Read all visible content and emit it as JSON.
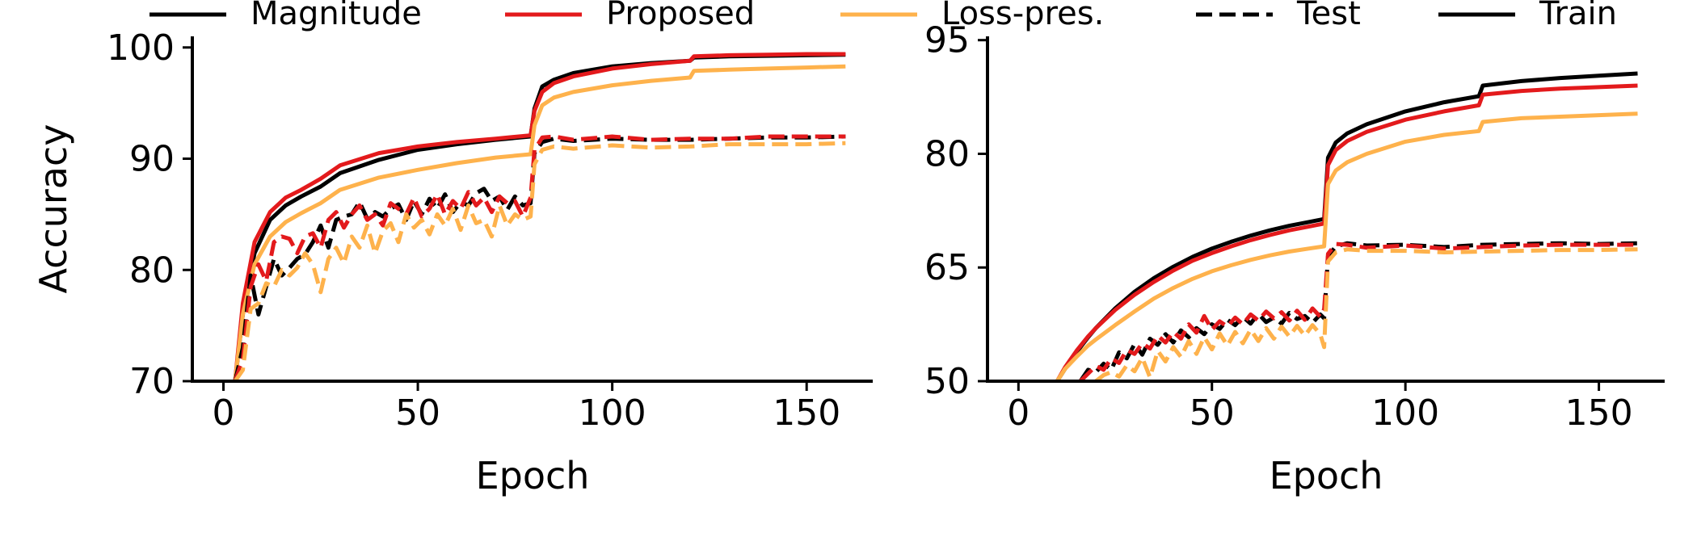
{
  "legend": {
    "placement": "top",
    "items": [
      {
        "label": "Magnitude",
        "color": "#000000",
        "dash": "solid"
      },
      {
        "label": "Proposed",
        "color": "#e31a1c",
        "dash": "solid"
      },
      {
        "label": "Loss-pres.",
        "color": "#feb24c",
        "dash": "solid"
      },
      {
        "label": "Test",
        "color": "#000000",
        "dash": "dashed"
      },
      {
        "label": "Train",
        "color": "#000000",
        "dash": "solid"
      }
    ]
  },
  "chart_data": [
    {
      "type": "line",
      "xlabel": "Epoch",
      "ylabel": "Accuracy",
      "xlim": [
        -8,
        167
      ],
      "ylim": [
        70,
        101
      ],
      "xticks": [
        0,
        50,
        100,
        150
      ],
      "yticks": [
        70,
        80,
        90,
        100
      ],
      "grid": false,
      "series": [
        {
          "name": "Magnitude",
          "split": "Train",
          "color": "#000000",
          "dash": "solid",
          "x": [
            3,
            5,
            8,
            12,
            16,
            20,
            25,
            30,
            40,
            50,
            60,
            70,
            79,
            80,
            82,
            85,
            90,
            100,
            110,
            120,
            121,
            130,
            140,
            150,
            160
          ],
          "y": [
            70,
            76,
            81.5,
            84.5,
            85.8,
            86.6,
            87.5,
            88.7,
            89.9,
            90.8,
            91.3,
            91.7,
            92.0,
            94.5,
            96.5,
            97.1,
            97.7,
            98.3,
            98.6,
            98.8,
            99.1,
            99.2,
            99.25,
            99.3,
            99.35
          ]
        },
        {
          "name": "Proposed",
          "split": "Train",
          "color": "#e31a1c",
          "dash": "solid",
          "x": [
            3,
            5,
            8,
            12,
            16,
            20,
            25,
            30,
            40,
            50,
            60,
            70,
            79,
            80,
            82,
            85,
            90,
            100,
            110,
            120,
            121,
            130,
            140,
            150,
            160
          ],
          "y": [
            70,
            77,
            82.5,
            85.2,
            86.5,
            87.2,
            88.2,
            89.4,
            90.5,
            91.1,
            91.5,
            91.8,
            92.1,
            94.3,
            96.0,
            96.8,
            97.4,
            98.1,
            98.5,
            98.8,
            99.2,
            99.3,
            99.35,
            99.4,
            99.4
          ]
        },
        {
          "name": "Loss-pres.",
          "split": "Train",
          "color": "#feb24c",
          "dash": "solid",
          "x": [
            3,
            5,
            8,
            12,
            16,
            20,
            25,
            30,
            40,
            50,
            60,
            70,
            79,
            80,
            82,
            85,
            90,
            100,
            110,
            120,
            121,
            130,
            140,
            150,
            160
          ],
          "y": [
            70,
            76,
            80.5,
            83.0,
            84.3,
            85.1,
            86.0,
            87.2,
            88.3,
            89.0,
            89.6,
            90.1,
            90.4,
            93.0,
            94.8,
            95.5,
            96.0,
            96.6,
            97.0,
            97.3,
            97.9,
            98.0,
            98.1,
            98.2,
            98.3
          ]
        },
        {
          "name": "Magnitude",
          "split": "Test",
          "color": "#000000",
          "dash": "dashed",
          "x": [
            3,
            5,
            7,
            9,
            11,
            13,
            15,
            17,
            19,
            21,
            23,
            25,
            27,
            29,
            31,
            33,
            35,
            37,
            39,
            41,
            43,
            45,
            47,
            49,
            51,
            53,
            55,
            57,
            59,
            61,
            63,
            65,
            67,
            69,
            71,
            73,
            75,
            77,
            79,
            80,
            82,
            85,
            90,
            100,
            110,
            120,
            130,
            140,
            150,
            160
          ],
          "y": [
            70,
            73,
            79.5,
            76.0,
            78.5,
            81.0,
            79.5,
            80.2,
            81.0,
            81.4,
            82.5,
            84.0,
            82.0,
            84.5,
            84.8,
            85.0,
            86.1,
            84.6,
            85.2,
            84.8,
            85.5,
            85.9,
            84.5,
            86.2,
            85.0,
            86.4,
            85.5,
            86.8,
            85.2,
            86.1,
            85.8,
            86.9,
            87.3,
            86.2,
            86.6,
            85.4,
            86.6,
            85.8,
            86.0,
            90.5,
            91.5,
            91.8,
            91.6,
            91.8,
            91.7,
            91.7,
            91.8,
            91.9,
            91.9,
            92.0
          ]
        },
        {
          "name": "Proposed",
          "split": "Test",
          "color": "#e31a1c",
          "dash": "dashed",
          "x": [
            3,
            5,
            7,
            9,
            11,
            13,
            15,
            17,
            19,
            21,
            23,
            25,
            27,
            29,
            31,
            33,
            35,
            37,
            39,
            41,
            43,
            45,
            47,
            49,
            51,
            53,
            55,
            57,
            59,
            61,
            63,
            65,
            67,
            69,
            71,
            73,
            75,
            77,
            79,
            80,
            82,
            85,
            90,
            100,
            110,
            120,
            130,
            140,
            150,
            160
          ],
          "y": [
            70,
            72,
            78.5,
            80.5,
            79.0,
            82.5,
            83.0,
            82.8,
            81.5,
            83.0,
            83.3,
            82.0,
            84.5,
            85.2,
            83.8,
            85.0,
            85.8,
            84.5,
            85.0,
            84.0,
            86.0,
            85.5,
            85.0,
            86.5,
            84.8,
            85.5,
            86.8,
            85.0,
            86.2,
            85.5,
            87.0,
            85.8,
            86.5,
            85.2,
            86.6,
            86.0,
            86.2,
            84.8,
            86.5,
            90.8,
            91.9,
            92.0,
            91.7,
            92.0,
            91.7,
            91.8,
            91.8,
            92.0,
            92.0,
            92.0
          ]
        },
        {
          "name": "Loss-pres.",
          "split": "Test",
          "color": "#feb24c",
          "dash": "dashed",
          "x": [
            3,
            5,
            7,
            9,
            11,
            13,
            15,
            17,
            19,
            21,
            23,
            25,
            27,
            29,
            31,
            33,
            35,
            37,
            39,
            41,
            43,
            45,
            47,
            49,
            51,
            53,
            55,
            57,
            59,
            61,
            63,
            65,
            67,
            69,
            71,
            73,
            75,
            77,
            79,
            80,
            82,
            85,
            90,
            100,
            110,
            120,
            130,
            140,
            150,
            160
          ],
          "y": [
            70,
            71,
            76.5,
            77.0,
            78.8,
            78.5,
            80.0,
            79.5,
            80.2,
            81.5,
            80.5,
            78.0,
            81.0,
            82.0,
            80.6,
            83.0,
            82.0,
            84.0,
            81.5,
            83.5,
            84.2,
            82.5,
            85.0,
            83.8,
            84.5,
            83.2,
            85.0,
            84.0,
            85.5,
            83.6,
            85.8,
            84.2,
            84.5,
            83.0,
            85.8,
            84.0,
            85.0,
            84.5,
            84.8,
            89.5,
            90.8,
            91.1,
            90.9,
            91.2,
            91.0,
            91.1,
            91.3,
            91.3,
            91.3,
            91.4
          ]
        }
      ]
    },
    {
      "type": "line",
      "xlabel": "Epoch",
      "ylabel": "",
      "xlim": [
        -8,
        167
      ],
      "ylim": [
        50,
        95.5
      ],
      "xticks": [
        0,
        50,
        100,
        150
      ],
      "yticks": [
        50,
        65,
        80,
        95
      ],
      "grid": false,
      "series": [
        {
          "name": "Magnitude",
          "split": "Train",
          "color": "#000000",
          "dash": "solid",
          "x": [
            10,
            12,
            15,
            18,
            20,
            25,
            30,
            35,
            40,
            45,
            50,
            55,
            60,
            65,
            70,
            75,
            79,
            80,
            82,
            85,
            90,
            100,
            110,
            119,
            120,
            130,
            140,
            150,
            160
          ],
          "y": [
            50,
            51.6,
            53.8,
            55.8,
            57.0,
            59.6,
            61.8,
            63.6,
            65.1,
            66.4,
            67.5,
            68.4,
            69.2,
            69.9,
            70.5,
            71.0,
            71.4,
            79.5,
            81.5,
            82.7,
            83.9,
            85.6,
            86.8,
            87.6,
            89.0,
            89.6,
            90.0,
            90.3,
            90.6
          ]
        },
        {
          "name": "Proposed",
          "split": "Train",
          "color": "#e31a1c",
          "dash": "solid",
          "x": [
            10,
            12,
            15,
            18,
            20,
            25,
            30,
            35,
            40,
            45,
            50,
            55,
            60,
            65,
            70,
            75,
            79,
            80,
            82,
            85,
            90,
            100,
            110,
            119,
            120,
            130,
            140,
            150,
            160
          ],
          "y": [
            50,
            51.8,
            54.0,
            55.9,
            57.0,
            59.4,
            61.4,
            63.1,
            64.6,
            65.9,
            66.9,
            67.8,
            68.6,
            69.3,
            69.9,
            70.4,
            70.8,
            78.5,
            80.5,
            81.7,
            82.9,
            84.5,
            85.6,
            86.4,
            87.8,
            88.3,
            88.6,
            88.8,
            89.0
          ]
        },
        {
          "name": "Loss-pres.",
          "split": "Train",
          "color": "#feb24c",
          "dash": "solid",
          "x": [
            10,
            12,
            15,
            18,
            20,
            25,
            30,
            35,
            40,
            45,
            50,
            55,
            60,
            65,
            70,
            75,
            79,
            80,
            82,
            85,
            90,
            100,
            110,
            119,
            120,
            130,
            140,
            150,
            160
          ],
          "y": [
            50,
            51.6,
            53.2,
            54.7,
            55.5,
            57.4,
            59.2,
            60.9,
            62.3,
            63.5,
            64.5,
            65.3,
            66.0,
            66.6,
            67.1,
            67.5,
            67.8,
            76.0,
            77.8,
            78.9,
            80.0,
            81.6,
            82.5,
            83.0,
            84.2,
            84.7,
            84.9,
            85.1,
            85.3
          ]
        },
        {
          "name": "Magnitude",
          "split": "Test",
          "color": "#000000",
          "dash": "dashed",
          "x": [
            16,
            18,
            20,
            22,
            24,
            26,
            28,
            30,
            32,
            34,
            36,
            38,
            40,
            42,
            44,
            46,
            48,
            50,
            52,
            54,
            56,
            58,
            60,
            62,
            64,
            66,
            68,
            70,
            72,
            74,
            76,
            78,
            79,
            80,
            82,
            85,
            90,
            100,
            110,
            120,
            130,
            140,
            150,
            160
          ],
          "y": [
            50,
            51.5,
            51.2,
            52.3,
            51.5,
            53.8,
            53.0,
            54.9,
            53.5,
            55.6,
            54.8,
            56.2,
            55.1,
            56.7,
            55.8,
            57.0,
            56.2,
            57.5,
            56.9,
            58.1,
            57.4,
            58.5,
            57.6,
            58.9,
            57.8,
            58.4,
            57.6,
            59.0,
            58.2,
            58.6,
            57.7,
            58.8,
            58.3,
            66.5,
            67.8,
            68.2,
            67.9,
            68.0,
            67.7,
            68.0,
            68.1,
            68.2,
            68.1,
            68.2
          ]
        },
        {
          "name": "Proposed",
          "split": "Test",
          "color": "#e31a1c",
          "dash": "dashed",
          "x": [
            16,
            18,
            20,
            22,
            24,
            26,
            28,
            30,
            32,
            34,
            36,
            38,
            40,
            42,
            44,
            46,
            48,
            50,
            52,
            54,
            56,
            58,
            60,
            62,
            64,
            66,
            68,
            70,
            72,
            74,
            76,
            78,
            79,
            80,
            82,
            85,
            90,
            100,
            110,
            120,
            130,
            140,
            150,
            160
          ],
          "y": [
            50,
            51.0,
            52.0,
            51.5,
            53.0,
            52.4,
            54.1,
            53.6,
            55.0,
            54.3,
            56.0,
            55.1,
            56.5,
            55.6,
            57.5,
            56.4,
            58.6,
            56.8,
            57.9,
            57.2,
            58.4,
            57.5,
            58.8,
            58.0,
            59.2,
            58.3,
            59.1,
            58.0,
            59.3,
            58.1,
            59.6,
            58.5,
            59.5,
            66.8,
            68.1,
            68.0,
            67.6,
            67.9,
            67.5,
            67.7,
            67.9,
            68.0,
            68.0,
            68.0
          ]
        },
        {
          "name": "Loss-pres.",
          "split": "Test",
          "color": "#feb24c",
          "dash": "dashed",
          "x": [
            20,
            22,
            24,
            26,
            28,
            30,
            32,
            34,
            36,
            38,
            40,
            42,
            44,
            46,
            48,
            50,
            52,
            54,
            56,
            58,
            60,
            62,
            64,
            66,
            68,
            70,
            72,
            74,
            76,
            78,
            79,
            80,
            82,
            85,
            90,
            100,
            110,
            120,
            130,
            140,
            150,
            160
          ],
          "y": [
            50,
            50.8,
            51.2,
            50.6,
            52.1,
            51.3,
            53.1,
            50.5,
            54.0,
            52.6,
            54.5,
            53.2,
            55.3,
            53.6,
            55.8,
            54.2,
            56.3,
            54.7,
            56.5,
            55.0,
            56.8,
            55.3,
            57.0,
            55.6,
            57.2,
            55.9,
            57.3,
            56.0,
            57.4,
            56.2,
            54.5,
            65.8,
            67.0,
            67.4,
            67.2,
            67.2,
            67.0,
            67.1,
            67.2,
            67.3,
            67.3,
            67.4
          ]
        }
      ]
    }
  ]
}
